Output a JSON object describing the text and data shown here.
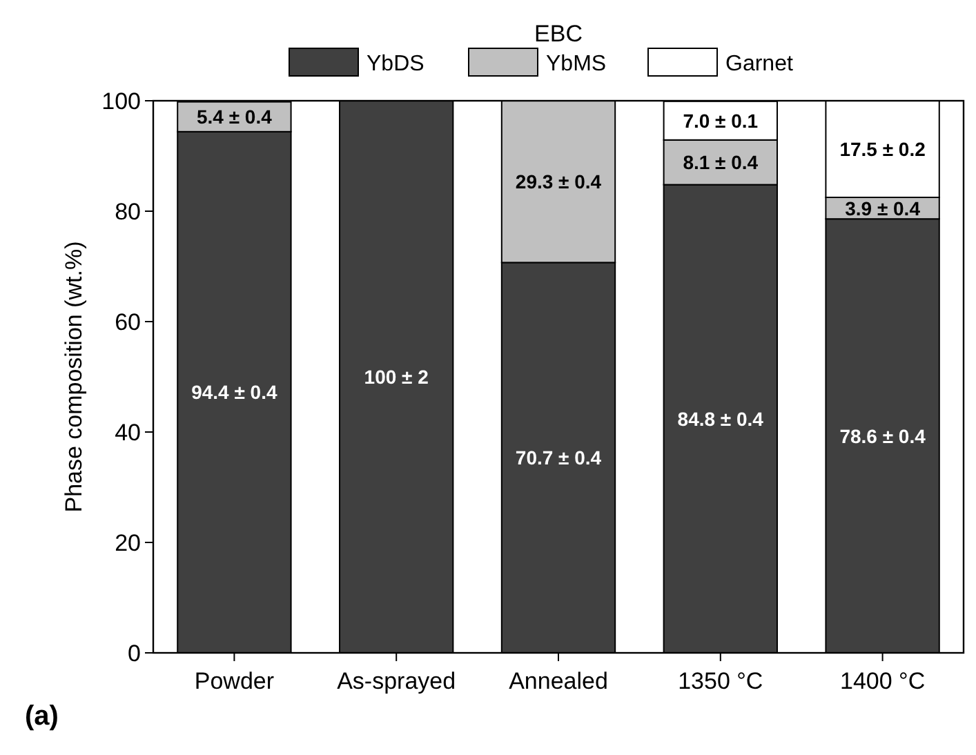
{
  "chart_data": {
    "type": "bar",
    "title": "EBC",
    "ylabel": "Phase composition (wt.%)",
    "categories": [
      "Powder",
      "As-sprayed",
      "Annealed",
      "1350 °C",
      "1400 °C"
    ],
    "stacked": true,
    "ylim": [
      0,
      100
    ],
    "yticks": [
      0,
      20,
      40,
      60,
      80,
      100
    ],
    "grid": false,
    "legend": "top",
    "annotations": [
      "(a)"
    ],
    "series": [
      {
        "name": "YbDS",
        "color": "#404040",
        "values": [
          94.4,
          100,
          70.7,
          84.8,
          78.6
        ],
        "value_labels": [
          "94.4 ± 0.4",
          "100 ± 2",
          "70.7 ± 0.4",
          "84.8 ± 0.4",
          "78.6 ± 0.4"
        ]
      },
      {
        "name": "YbMS",
        "color": "#c0c0c0",
        "values": [
          5.4,
          0,
          29.3,
          8.1,
          3.9
        ],
        "value_labels": [
          "5.4 ± 0.4",
          null,
          "29.3 ± 0.4",
          "8.1 ± 0.4",
          "3.9 ± 0.4"
        ]
      },
      {
        "name": "Garnet",
        "color": "#ffffff",
        "values": [
          0,
          0,
          0,
          7.0,
          17.5
        ],
        "value_labels": [
          null,
          null,
          null,
          "7.0 ± 0.1",
          "17.5 ± 0.2"
        ]
      }
    ]
  }
}
